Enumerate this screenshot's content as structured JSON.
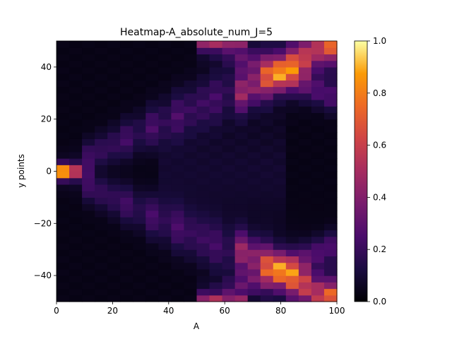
{
  "chart_data": {
    "type": "heatmap",
    "title": "Heatmap-A_absolute_num_J=5",
    "xlabel": "A",
    "ylabel": "y points",
    "xlim": [
      0,
      100
    ],
    "ylim": [
      -50,
      50
    ],
    "x_ticks": [
      0,
      20,
      40,
      60,
      80,
      100
    ],
    "y_ticks": [
      -40,
      -20,
      0,
      20,
      40
    ],
    "colormap": "inferno",
    "colorbar": {
      "range": [
        0,
        1
      ],
      "ticks": [
        0.0,
        0.2,
        0.4,
        0.6,
        0.8,
        1.0
      ],
      "tick_labels": [
        "0.0",
        "0.2",
        "0.4",
        "0.6",
        "0.8",
        "1.0"
      ]
    },
    "grid": {
      "nx": 22,
      "ny": 40
    },
    "model_description": "Interference pattern: bright spot at x=0,y=0 spreading into two diagonal branches (|y|≈0.5·x) and reflected branches that bend back inward toward x≈60 at the edges, with high intensity near x=80–100, |y|≈30–50."
  }
}
